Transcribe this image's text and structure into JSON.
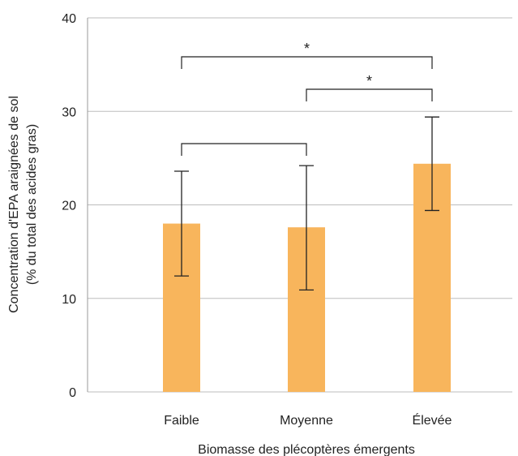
{
  "chart_data": {
    "type": "bar",
    "categories": [
      "Faible",
      "Moyenne",
      "Élevée"
    ],
    "values": [
      18.0,
      17.6,
      24.4
    ],
    "error_low": [
      12.4,
      10.9,
      19.4
    ],
    "error_high": [
      23.6,
      24.2,
      29.4
    ],
    "xlabel": "Biomasse des plécoptères émergents",
    "ylabel_lines": [
      "Concentration d'EPA araignées de sol",
      "(% du total des acides gras)"
    ],
    "ylim": [
      0,
      40
    ],
    "yticks": [
      0,
      10,
      20,
      30,
      40
    ],
    "grid": true,
    "bar_color": "#F8B55C",
    "significance": [
      {
        "from": 0,
        "to": 2,
        "label": "*"
      },
      {
        "from": 1,
        "to": 2,
        "label": "*"
      },
      {
        "from": 0,
        "to": 1,
        "label": ""
      }
    ]
  }
}
